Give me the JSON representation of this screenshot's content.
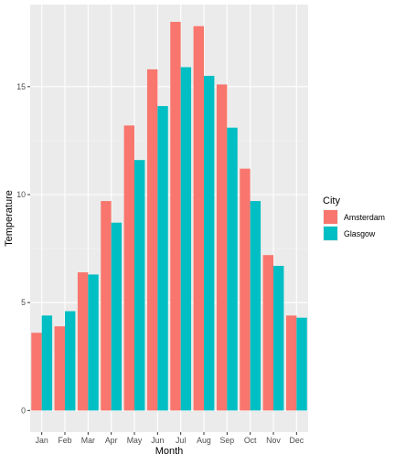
{
  "chart_data": {
    "type": "bar",
    "xlabel": "Month",
    "ylabel": "Temperature",
    "categories": [
      "Jan",
      "Feb",
      "Mar",
      "Apr",
      "May",
      "Jun",
      "Jul",
      "Aug",
      "Sep",
      "Oct",
      "Nov",
      "Dec"
    ],
    "y_ticks": [
      0,
      5,
      10,
      15
    ],
    "ylim": [
      -1,
      18.8
    ],
    "grid": true,
    "legend": {
      "title": "City",
      "position": "right"
    },
    "series": [
      {
        "name": "Amsterdam",
        "color": "#F8766D",
        "values": [
          3.6,
          3.9,
          6.4,
          9.7,
          13.2,
          15.8,
          18.0,
          17.8,
          15.1,
          11.2,
          7.2,
          4.4
        ]
      },
      {
        "name": "Glasgow",
        "color": "#00BFC4",
        "values": [
          4.4,
          4.6,
          6.3,
          8.7,
          11.6,
          14.1,
          15.9,
          15.5,
          13.1,
          9.7,
          6.7,
          4.3
        ]
      }
    ]
  }
}
